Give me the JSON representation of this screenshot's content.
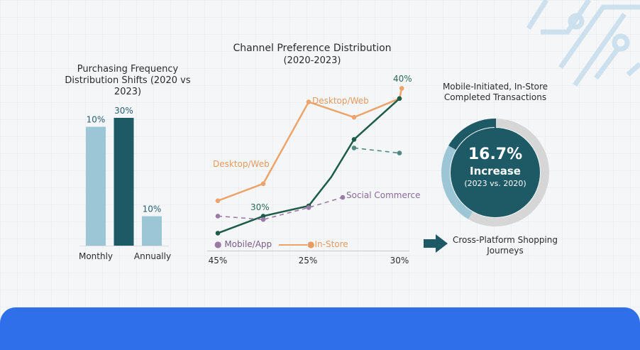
{
  "chart_data": [
    {
      "type": "bar",
      "title": "Purchasing Frequency Distribution Shifts (2020 vs 2023)",
      "categories": [
        "Monthly",
        "",
        "Annually"
      ],
      "values": [
        10,
        30,
        10
      ],
      "data_labels": [
        "10%",
        "30%",
        "10%"
      ],
      "bar_colors": [
        "#9cc6d6",
        "#1e5a66",
        "#9cc6d6"
      ],
      "bar_heights_relative": [
        0.93,
        1.0,
        0.23
      ],
      "grid": false
    },
    {
      "type": "line",
      "title": "Channel Preference Distribution",
      "subtitle": "(2020-2023)",
      "x_tick_labels": [
        "45%",
        "25%",
        "30%"
      ],
      "ylim": [
        0,
        100
      ],
      "grid": false,
      "series": [
        {
          "name": "In-Store",
          "color": "#eda46c",
          "style": "solid",
          "x": [
            0,
            1,
            2,
            3,
            4,
            4.05
          ],
          "y": [
            28,
            38,
            86,
            77,
            88,
            94
          ]
        },
        {
          "name": "Mobile/App",
          "color": "#1d5c47",
          "style": "solid",
          "x": [
            0,
            1,
            2,
            2.5,
            3,
            4
          ],
          "y": [
            9,
            19,
            25,
            42,
            64,
            88
          ]
        },
        {
          "name": "Social Commerce",
          "color": "#9b7aa6",
          "style": "dashed",
          "x": [
            0,
            1,
            2,
            2.75
          ],
          "y": [
            19,
            17,
            24,
            30
          ]
        },
        {
          "name": "",
          "color": "#4f8a80",
          "style": "dashed",
          "x": [
            3,
            4
          ],
          "y": [
            59,
            56
          ]
        }
      ],
      "annotations": {
        "desktop_web_upper": "Desktop/Web",
        "desktop_web_left": "Desktop/Web",
        "social_commerce": "Social Commerce",
        "label_30": "30%",
        "label_40": "40%"
      },
      "legend": [
        "Mobile/App",
        "In-Store"
      ],
      "legend_placement": "bottom"
    },
    {
      "type": "pie",
      "title": "Mobile-Initiated, In-Store Completed Transactions",
      "center_value": "16.7%",
      "center_label": "Increase",
      "center_sub": "(2023 vs. 2020)",
      "slices": [
        {
          "value": 16.7,
          "color": "#1e5a66"
        },
        {
          "value": 25,
          "color": "#9cc6d6"
        },
        {
          "value": 58.3,
          "color": "#d6d6d6"
        }
      ]
    }
  ],
  "callout": {
    "text_line1": "Cross-Platform Shopping",
    "text_line2": "Journeys",
    "icon": "arrow-right-icon",
    "color": "#1e5a66"
  },
  "colors": {
    "accent_bar": "#2f6fe9",
    "background": "#f4f6f8"
  }
}
